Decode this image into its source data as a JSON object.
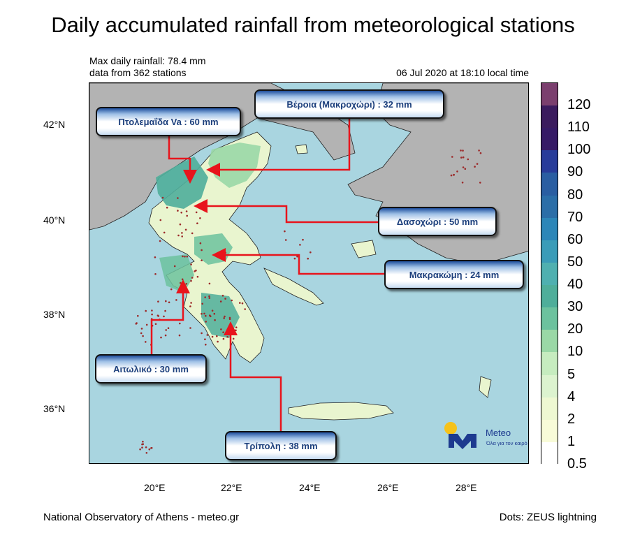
{
  "title": "Daily accumulated rainfall from meteorological stations",
  "stats": {
    "max_rainfall": "Max daily rainfall: 78.4 mm",
    "station_count": "data from 362 stations",
    "timestamp": "06 Jul 2020 at 18:10 local time"
  },
  "axes": {
    "lat_labels": [
      "42°N",
      "40°N",
      "38°N",
      "36°N"
    ],
    "lon_labels": [
      "20°E",
      "22°E",
      "24°E",
      "26°E",
      "28°E"
    ]
  },
  "colorbar": {
    "labels": [
      "120",
      "110",
      "100",
      "90",
      "80",
      "70",
      "60",
      "50",
      "40",
      "30",
      "20",
      "10",
      "5",
      "4",
      "2",
      "1",
      "0.5"
    ],
    "colors": [
      "#7b3f6e",
      "#3b1b5e",
      "#361a66",
      "#283c9a",
      "#2a5ea2",
      "#2b6ea8",
      "#2c86b8",
      "#3a9cb8",
      "#4fb0b0",
      "#4fae9a",
      "#6cc29e",
      "#9ad8a6",
      "#c6ecbf",
      "#dcf3cf",
      "#eef8d2",
      "#f8fbd8",
      "#ffffff"
    ]
  },
  "callouts": {
    "veroia": "Βέροια (Μακροχώρι) : 32 mm",
    "ptolemaida": "Πτολεμαΐδα Va : 60 mm",
    "dasoxori": "Δασοχώρι : 50 mm",
    "makrakomi": "Μακρακώμη : 24 mm",
    "aitoliko": "Αιτωλικό : 30 mm",
    "tripoli": "Τρίπολη : 38 mm"
  },
  "logo": {
    "name": "Meteo",
    "tagline": "Όλα για τον καιρό"
  },
  "footer": {
    "left": "National Observatory of Athens - meteo.gr",
    "right": "Dots: ZEUS lightning"
  },
  "colors": {
    "sea": "#a9d5e0",
    "land_outside": "#b3b3b3",
    "arrow": "#e8141c",
    "lightning_dot": "#9c2a2a"
  }
}
